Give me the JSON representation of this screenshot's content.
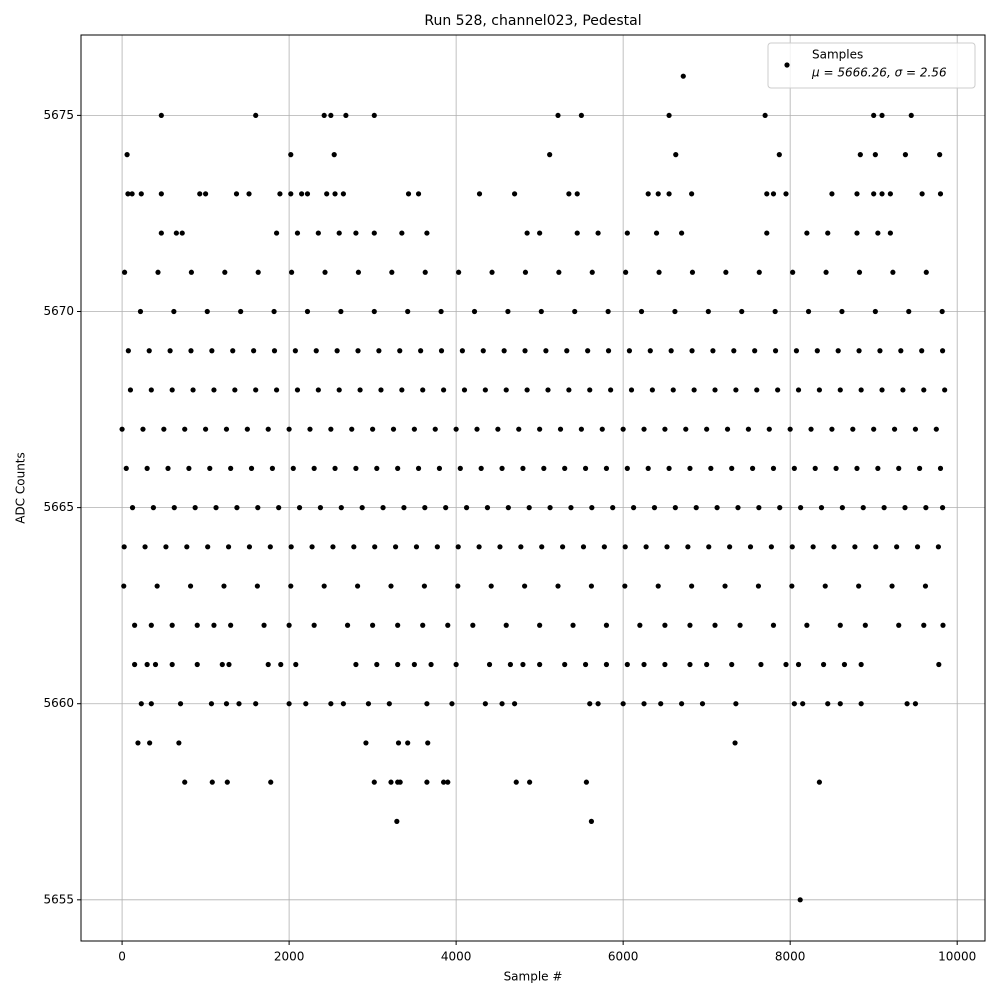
{
  "chart_data": {
    "type": "scatter",
    "title": "Run 528, channel023, Pedestal",
    "xlabel": "Sample #",
    "ylabel": "ADC Counts",
    "xlim": [
      -492,
      10333
    ],
    "ylim": [
      5653.95,
      5677.05
    ],
    "xticks": [
      0,
      2000,
      4000,
      6000,
      8000,
      10000
    ],
    "yticks": [
      5655,
      5660,
      5665,
      5670,
      5675
    ],
    "grid": true,
    "legend": "upper right",
    "legend_note": "μ = 5666.26, σ = 2.56",
    "series": [
      {
        "name": "Samples",
        "color": "#000000",
        "x": [
          0,
          250,
          500,
          750,
          1000,
          1250,
          1500,
          1750,
          2000,
          2250,
          2500,
          2750,
          3000,
          3250,
          3500,
          3750,
          4000,
          4250,
          4500,
          4750,
          5000,
          5250,
          5500,
          5750,
          6000,
          6250,
          6500,
          6750,
          7000,
          7250,
          7500,
          7750,
          8000,
          8250,
          8500,
          8750,
          9000,
          9250,
          9500,
          9750,
          100,
          350,
          600,
          850,
          1100,
          1350,
          1600,
          1850,
          2100,
          2350,
          2600,
          2850,
          3100,
          3350,
          3600,
          3850,
          4100,
          4350,
          4600,
          4850,
          5100,
          5350,
          5600,
          5850,
          6100,
          6350,
          6600,
          6850,
          7100,
          7350,
          7600,
          7850,
          8100,
          8350,
          8600,
          8850,
          9100,
          9350,
          9600,
          9850,
          50,
          300,
          550,
          800,
          1050,
          1300,
          1550,
          1800,
          2050,
          2300,
          2550,
          2800,
          3050,
          3300,
          3550,
          3800,
          4050,
          4300,
          4550,
          4800,
          5050,
          5300,
          5550,
          5800,
          6050,
          6300,
          6550,
          6800,
          7050,
          7300,
          7550,
          7800,
          8050,
          8300,
          8550,
          8800,
          9050,
          9300,
          9550,
          9800,
          125,
          375,
          625,
          875,
          1125,
          1375,
          1625,
          1875,
          2125,
          2375,
          2625,
          2875,
          3125,
          3375,
          3625,
          3875,
          4125,
          4375,
          4625,
          4875,
          5125,
          5375,
          5625,
          5875,
          6125,
          6375,
          6625,
          6875,
          7125,
          7375,
          7625,
          7875,
          8125,
          8375,
          8625,
          8875,
          9125,
          9375,
          9625,
          9825,
          25,
          275,
          525,
          775,
          1025,
          1275,
          1525,
          1775,
          2025,
          2275,
          2525,
          2775,
          3025,
          3275,
          3525,
          3775,
          4025,
          4275,
          4525,
          4775,
          5025,
          5275,
          5525,
          5775,
          6025,
          6275,
          6525,
          6775,
          7025,
          7275,
          7525,
          7775,
          8025,
          8275,
          8525,
          8775,
          9025,
          9275,
          9525,
          9775,
          75,
          325,
          575,
          825,
          1075,
          1325,
          1575,
          1825,
          2075,
          2325,
          2575,
          2825,
          3075,
          3325,
          3575,
          3825,
          4075,
          4325,
          4575,
          4825,
          5075,
          5325,
          5575,
          5825,
          6075,
          6325,
          6575,
          6825,
          7075,
          7325,
          7575,
          7825,
          8075,
          8325,
          8575,
          8825,
          9075,
          9325,
          9575,
          9825,
          20,
          420,
          820,
          1220,
          1620,
          2020,
          2420,
          2820,
          3220,
          3620,
          4020,
          4420,
          4820,
          5220,
          5620,
          6020,
          6420,
          6820,
          7220,
          7620,
          8020,
          8420,
          8820,
          9220,
          9620,
          220,
          620,
          1020,
          1420,
          1820,
          2220,
          2620,
          3020,
          3420,
          3820,
          4220,
          4620,
          5020,
          5420,
          5820,
          6220,
          6620,
          7020,
          7420,
          7820,
          8220,
          8620,
          9020,
          9420,
          9820,
          30,
          430,
          830,
          1230,
          1630,
          2030,
          2430,
          2830,
          3230,
          3630,
          4030,
          4430,
          4830,
          5230,
          5630,
          6030,
          6430,
          6830,
          7230,
          7630,
          8030,
          8430,
          8830,
          9230,
          9630,
          150,
          350,
          600,
          900,
          1100,
          1300,
          1700,
          2000,
          2300,
          2700,
          3000,
          3300,
          3600,
          3900,
          4200,
          4600,
          5000,
          5400,
          5800,
          6200,
          6500,
          6800,
          7100,
          7400,
          7800,
          8200,
          8600,
          8900,
          9300,
          9600,
          9830,
          470,
          650,
          720,
          1850,
          2100,
          2350,
          2600,
          2800,
          3020,
          3350,
          3650,
          4850,
          5000,
          5450,
          5700,
          6050,
          6400,
          6700,
          7720,
          8200,
          8450,
          8800,
          9050,
          9200,
          150,
          300,
          400,
          600,
          900,
          1200,
          1280,
          1750,
          1900,
          2080,
          2800,
          3050,
          3300,
          3500,
          3700,
          4000,
          4400,
          4650,
          4800,
          5000,
          5300,
          5550,
          5800,
          6050,
          6250,
          6500,
          6800,
          7000,
          7300,
          7650,
          7950,
          8100,
          8400,
          8650,
          8850,
          9780,
          230,
          350,
          700,
          1070,
          1250,
          1400,
          1600,
          2000,
          2200,
          2500,
          2650,
          2950,
          3200,
          3650,
          3950,
          4350,
          4550,
          4700,
          5600,
          5700,
          6000,
          6250,
          6450,
          6700,
          6950,
          7350,
          8050,
          8150,
          8450,
          8600,
          8850,
          9400,
          9500,
          190,
          330,
          680,
          2920,
          3310,
          3420,
          3660,
          7340,
          750,
          1080,
          1260,
          1780,
          3020,
          3220,
          3300,
          3330,
          3650,
          3850,
          3900,
          4720,
          4880,
          5560,
          8350,
          3290,
          5620,
          8120,
          70,
          120,
          230,
          470,
          930,
          1000,
          1370,
          1520,
          1890,
          2020,
          2150,
          2220,
          2450,
          2550,
          2650,
          3430,
          3550,
          4280,
          4700,
          5350,
          5450,
          6300,
          6420,
          6550,
          6820,
          7720,
          7800,
          7950,
          8500,
          8800,
          9000,
          9100,
          9200,
          9580,
          9800,
          60,
          2020,
          2540,
          5120,
          6630,
          7870,
          8840,
          9020,
          9380,
          9790,
          470,
          1600,
          2420,
          2500,
          2680,
          3020,
          5220,
          5500,
          6550,
          7700,
          9000,
          9100,
          9450,
          6720
        ],
        "values": [
          5667,
          5667,
          5667,
          5667,
          5667,
          5667,
          5667,
          5667,
          5667,
          5667,
          5667,
          5667,
          5667,
          5667,
          5667,
          5667,
          5667,
          5667,
          5667,
          5667,
          5667,
          5667,
          5667,
          5667,
          5667,
          5667,
          5667,
          5667,
          5667,
          5667,
          5667,
          5667,
          5667,
          5667,
          5667,
          5667,
          5667,
          5667,
          5667,
          5667,
          5668,
          5668,
          5668,
          5668,
          5668,
          5668,
          5668,
          5668,
          5668,
          5668,
          5668,
          5668,
          5668,
          5668,
          5668,
          5668,
          5668,
          5668,
          5668,
          5668,
          5668,
          5668,
          5668,
          5668,
          5668,
          5668,
          5668,
          5668,
          5668,
          5668,
          5668,
          5668,
          5668,
          5668,
          5668,
          5668,
          5668,
          5668,
          5668,
          5668,
          5666,
          5666,
          5666,
          5666,
          5666,
          5666,
          5666,
          5666,
          5666,
          5666,
          5666,
          5666,
          5666,
          5666,
          5666,
          5666,
          5666,
          5666,
          5666,
          5666,
          5666,
          5666,
          5666,
          5666,
          5666,
          5666,
          5666,
          5666,
          5666,
          5666,
          5666,
          5666,
          5666,
          5666,
          5666,
          5666,
          5666,
          5666,
          5666,
          5666,
          5665,
          5665,
          5665,
          5665,
          5665,
          5665,
          5665,
          5665,
          5665,
          5665,
          5665,
          5665,
          5665,
          5665,
          5665,
          5665,
          5665,
          5665,
          5665,
          5665,
          5665,
          5665,
          5665,
          5665,
          5665,
          5665,
          5665,
          5665,
          5665,
          5665,
          5665,
          5665,
          5665,
          5665,
          5665,
          5665,
          5665,
          5665,
          5665,
          5665,
          5664,
          5664,
          5664,
          5664,
          5664,
          5664,
          5664,
          5664,
          5664,
          5664,
          5664,
          5664,
          5664,
          5664,
          5664,
          5664,
          5664,
          5664,
          5664,
          5664,
          5664,
          5664,
          5664,
          5664,
          5664,
          5664,
          5664,
          5664,
          5664,
          5664,
          5664,
          5664,
          5664,
          5664,
          5664,
          5664,
          5664,
          5664,
          5664,
          5664,
          5669,
          5669,
          5669,
          5669,
          5669,
          5669,
          5669,
          5669,
          5669,
          5669,
          5669,
          5669,
          5669,
          5669,
          5669,
          5669,
          5669,
          5669,
          5669,
          5669,
          5669,
          5669,
          5669,
          5669,
          5669,
          5669,
          5669,
          5669,
          5669,
          5669,
          5669,
          5669,
          5669,
          5669,
          5669,
          5669,
          5669,
          5669,
          5669,
          5669,
          5663,
          5663,
          5663,
          5663,
          5663,
          5663,
          5663,
          5663,
          5663,
          5663,
          5663,
          5663,
          5663,
          5663,
          5663,
          5663,
          5663,
          5663,
          5663,
          5663,
          5663,
          5663,
          5663,
          5663,
          5663,
          5670,
          5670,
          5670,
          5670,
          5670,
          5670,
          5670,
          5670,
          5670,
          5670,
          5670,
          5670,
          5670,
          5670,
          5670,
          5670,
          5670,
          5670,
          5670,
          5670,
          5670,
          5670,
          5670,
          5670,
          5670,
          5671,
          5671,
          5671,
          5671,
          5671,
          5671,
          5671,
          5671,
          5671,
          5671,
          5671,
          5671,
          5671,
          5671,
          5671,
          5671,
          5671,
          5671,
          5671,
          5671,
          5671,
          5671,
          5671,
          5671,
          5671,
          5662,
          5662,
          5662,
          5662,
          5662,
          5662,
          5662,
          5662,
          5662,
          5662,
          5662,
          5662,
          5662,
          5662,
          5662,
          5662,
          5662,
          5662,
          5662,
          5662,
          5662,
          5662,
          5662,
          5662,
          5662,
          5662,
          5662,
          5662,
          5662,
          5662,
          5662,
          5672,
          5672,
          5672,
          5672,
          5672,
          5672,
          5672,
          5672,
          5672,
          5672,
          5672,
          5672,
          5672,
          5672,
          5672,
          5672,
          5672,
          5672,
          5672,
          5672,
          5672,
          5672,
          5672,
          5672,
          5661,
          5661,
          5661,
          5661,
          5661,
          5661,
          5661,
          5661,
          5661,
          5661,
          5661,
          5661,
          5661,
          5661,
          5661,
          5661,
          5661,
          5661,
          5661,
          5661,
          5661,
          5661,
          5661,
          5661,
          5661,
          5661,
          5661,
          5661,
          5661,
          5661,
          5661,
          5661,
          5661,
          5661,
          5661,
          5661,
          5660,
          5660,
          5660,
          5660,
          5660,
          5660,
          5660,
          5660,
          5660,
          5660,
          5660,
          5660,
          5660,
          5660,
          5660,
          5660,
          5660,
          5660,
          5660,
          5660,
          5660,
          5660,
          5660,
          5660,
          5660,
          5660,
          5660,
          5660,
          5660,
          5660,
          5660,
          5660,
          5660,
          5659,
          5659,
          5659,
          5659,
          5659,
          5659,
          5659,
          5659,
          5658,
          5658,
          5658,
          5658,
          5658,
          5658,
          5658,
          5658,
          5658,
          5658,
          5658,
          5658,
          5658,
          5658,
          5658,
          5657,
          5657,
          5655,
          5673,
          5673,
          5673,
          5673,
          5673,
          5673,
          5673,
          5673,
          5673,
          5673,
          5673,
          5673,
          5673,
          5673,
          5673,
          5673,
          5673,
          5673,
          5673,
          5673,
          5673,
          5673,
          5673,
          5673,
          5673,
          5673,
          5673,
          5673,
          5673,
          5673,
          5673,
          5673,
          5673,
          5673,
          5673,
          5674,
          5674,
          5674,
          5674,
          5674,
          5674,
          5674,
          5674,
          5674,
          5674,
          5675,
          5675,
          5675,
          5675,
          5675,
          5675,
          5675,
          5675,
          5675,
          5675,
          5675,
          5675,
          5675,
          5676
        ]
      }
    ]
  }
}
